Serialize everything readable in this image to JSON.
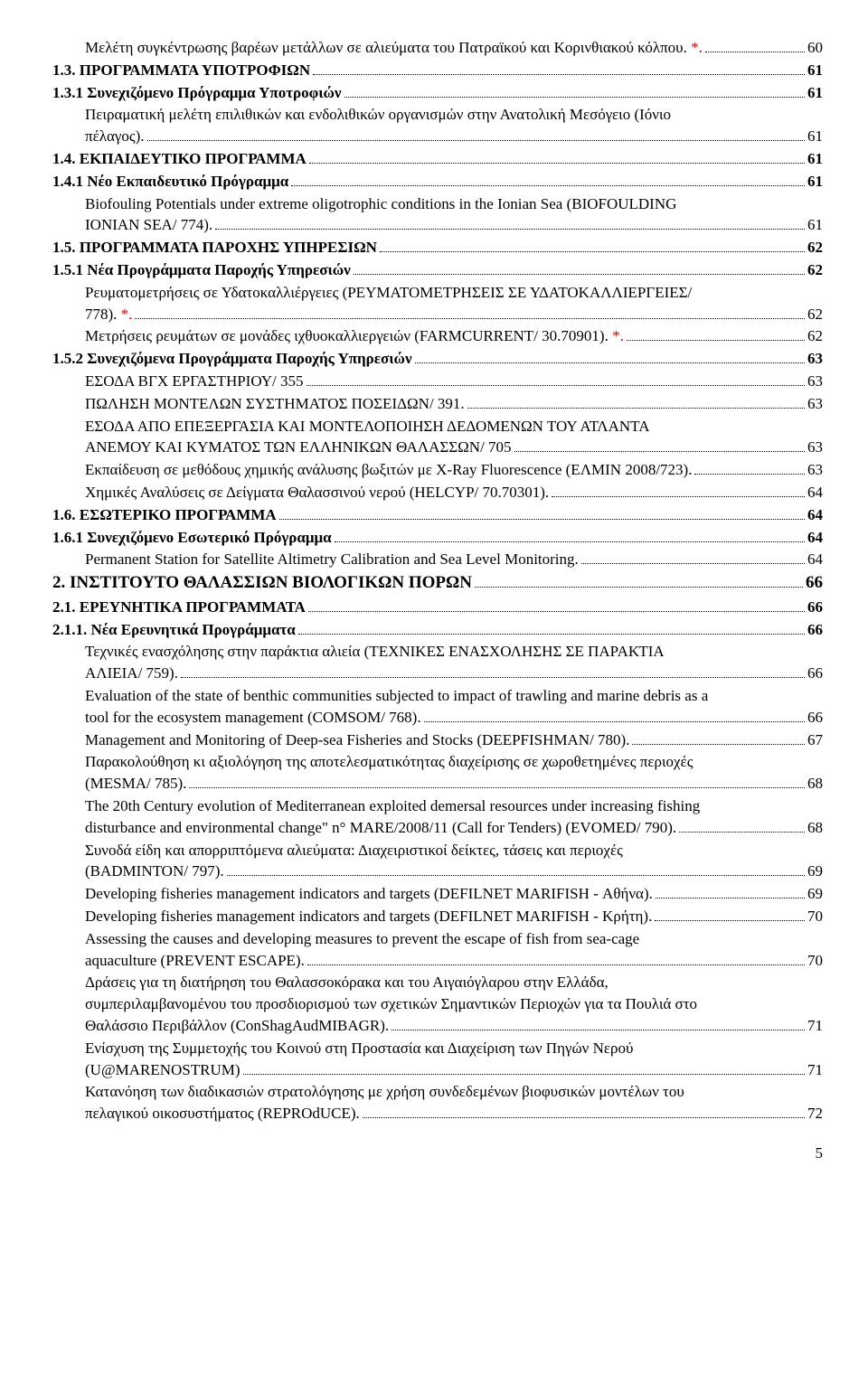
{
  "entries": [
    {
      "lvl": "l3",
      "bold": false,
      "lines": [
        "Μελέτη συγκέντρωσης βαρέων μετάλλων σε αλιεύματα του Πατραϊκού και Κορινθιακού κόλπου. "
      ],
      "trail": "*",
      "pg": "60"
    },
    {
      "lvl": "l1",
      "bold": true,
      "lines": [
        "1.3. ΠΡΟΓΡΑΜΜΑΤΑ ΥΠΟΤΡΟΦΙΩΝ"
      ],
      "pg": "61"
    },
    {
      "lvl": "l1",
      "bold": true,
      "lines": [
        "1.3.1 Συνεχιζόμενο Πρόγραμμα Υποτροφιών"
      ],
      "pg": "61"
    },
    {
      "lvl": "l3",
      "bold": false,
      "lines": [
        "Πειραματική μελέτη επιλιθικών και ενδολιθικών οργανισμών στην Ανατολική Μεσόγειο (Ιόνιο",
        "πέλαγος)."
      ],
      "pg": "61"
    },
    {
      "lvl": "l1",
      "bold": true,
      "lines": [
        "1.4. ΕΚΠΑΙΔΕΥΤΙΚΟ ΠΡΟΓΡΑΜΜΑ"
      ],
      "pg": "61"
    },
    {
      "lvl": "l1",
      "bold": true,
      "lines": [
        "1.4.1 Νέο Εκπαιδευτικό Πρόγραμμα"
      ],
      "pg": "61"
    },
    {
      "lvl": "l3",
      "bold": false,
      "lines": [
        "Biofouling Potentials under extreme oligotrophic conditions in the Ionian Sea (BIOFOULDING",
        "IONIAN SEA/ 774)."
      ],
      "pg": "61"
    },
    {
      "lvl": "l1",
      "bold": true,
      "lines": [
        "1.5. ΠΡΟΓΡΑΜΜΑΤΑ ΠΑΡΟΧΗΣ ΥΠΗΡΕΣΙΩΝ"
      ],
      "pg": "62"
    },
    {
      "lvl": "l1",
      "bold": true,
      "lines": [
        "1.5.1 Νέα Προγράμματα Παροχής Υπηρεσιών"
      ],
      "pg": "62"
    },
    {
      "lvl": "l3",
      "bold": false,
      "lines": [
        "Ρευματομετρήσεις σε Υδατοκαλλιέργειες (ΡΕΥΜΑΤΟΜΕΤΡΗΣΕΙΣ ΣΕ ΥΔΑΤΟΚΑΛΛΙΕΡΓΕΙΕΣ/",
        "778). "
      ],
      "trail": "*",
      "pg": "62"
    },
    {
      "lvl": "l3",
      "bold": false,
      "lines": [
        "Μετρήσεις ρευμάτων σε μονάδες ιχθυοκαλλιεργειών (FARMCURRENT/ 30.70901). "
      ],
      "trail": "*",
      "pg": "62"
    },
    {
      "lvl": "l1",
      "bold": true,
      "lines": [
        "1.5.2 Συνεχιζόμενα Προγράμματα Παροχής Υπηρεσιών"
      ],
      "pg": "63"
    },
    {
      "lvl": "l3",
      "bold": false,
      "lines": [
        "ΕΣΟΔΑ ΒΓΧ ΕΡΓΑΣΤΗΡΙΟΥ/ 355"
      ],
      "pg": "63"
    },
    {
      "lvl": "l3",
      "bold": false,
      "lines": [
        "ΠΩΛΗΣΗ ΜΟΝΤΕΛΩΝ ΣΥΣΤΗΜΑΤΟΣ ΠΟΣΕΙΔΩΝ/ 391."
      ],
      "pg": "63"
    },
    {
      "lvl": "l3",
      "bold": false,
      "lines": [
        "ΕΣΟΔΑ ΑΠΟ ΕΠΕΞΕΡΓΑΣΙΑ ΚΑΙ ΜΟΝΤΕΛΟΠΟΙΗΣΗ ΔΕΔΟΜΕΝΩΝ ΤΟΥ ΑΤΛΑΝΤΑ",
        "ΑΝΕΜΟΥ ΚΑΙ ΚΥΜΑΤΟΣ ΤΩΝ ΕΛΛΗΝΙΚΩΝ ΘΑΛΑΣΣΩΝ/ 705"
      ],
      "pg": "63"
    },
    {
      "lvl": "l3",
      "bold": false,
      "lines": [
        "Εκπαίδευση σε μεθόδους χημικής ανάλυσης βωξιτών με X-Ray Fluorescence (ΕΛΜΙΝ 2008/723)."
      ],
      "pg": "63"
    },
    {
      "lvl": "l3",
      "bold": false,
      "lines": [
        "Χημικές Αναλύσεις σε Δείγματα Θαλασσινού νερού (HELCYP/ 70.70301)."
      ],
      "pg": "64"
    },
    {
      "lvl": "l1",
      "bold": true,
      "lines": [
        "1.6. ΕΣΩΤΕΡΙΚΟ ΠΡΟΓΡΑΜΜΑ"
      ],
      "pg": "64"
    },
    {
      "lvl": "l1",
      "bold": true,
      "lines": [
        "1.6.1 Συνεχιζόμενο Εσωτερικό Πρόγραμμα"
      ],
      "pg": "64"
    },
    {
      "lvl": "l3",
      "bold": false,
      "lines": [
        "Permanent Station for Satellite Altimetry Calibration and Sea Level Monitoring."
      ],
      "pg": "64"
    },
    {
      "lvl": "l1",
      "bold": true,
      "lines": [
        "2. ΙΝΣΤΙΤΟΥΤΟ ΘΑΛΑΣΣΙΩΝ ΒΙΟΛΟΓΙΚΩΝ ΠΟΡΩΝ"
      ],
      "pg": "66",
      "big": true
    },
    {
      "lvl": "l1",
      "bold": true,
      "lines": [
        "2.1. ΕΡΕΥΝΗΤΙΚΑ ΠΡΟΓΡΑΜΜΑΤΑ"
      ],
      "pg": "66"
    },
    {
      "lvl": "l1",
      "bold": true,
      "lines": [
        "2.1.1. Νέα Ερευνητικά Προγράμματα"
      ],
      "pg": "66"
    },
    {
      "lvl": "l3",
      "bold": false,
      "lines": [
        "Τεχνικές ενασχόλησης στην παράκτια αλιεία (ΤΕΧΝΙΚΕΣ ΕΝΑΣΧΟΛΗΣΗΣ ΣΕ ΠΑΡΑΚΤΙΑ",
        "ΑΛΙΕΙΑ/ 759)."
      ],
      "pg": "66"
    },
    {
      "lvl": "l3",
      "bold": false,
      "lines": [
        "Evaluation of the state of benthic communities subjected to impact of trawling and marine debris as a",
        "tool for the ecosystem management (COMSOM/ 768)."
      ],
      "pg": "66"
    },
    {
      "lvl": "l3",
      "bold": false,
      "lines": [
        "Management and Monitoring of Deep-sea Fisheries and Stocks (DEEPFISHMAN/ 780)."
      ],
      "pg": "67"
    },
    {
      "lvl": "l3",
      "bold": false,
      "lines": [
        "Παρακολούθηση κι αξιολόγηση της αποτελεσματικότητας διαχείρισης σε χωροθετημένες περιοχές",
        "(MESMA/ 785)."
      ],
      "pg": "68"
    },
    {
      "lvl": "l3",
      "bold": false,
      "lines": [
        "The 20th Century evolution of Mediterranean exploited demersal resources under increasing fishing",
        "disturbance and environmental change\" n° MARE/2008/11 (Call for Tenders) (EVOMED/ 790)."
      ],
      "pg": "68"
    },
    {
      "lvl": "l3",
      "bold": false,
      "lines": [
        "Συνοδά είδη και απορριπτόμενα αλιεύματα: Διαχειριστικοί δείκτες, τάσεις και περιοχές",
        "(BADMINTON/ 797)."
      ],
      "pg": "69"
    },
    {
      "lvl": "l3",
      "bold": false,
      "lines": [
        "Developing fisheries management indicators and targets (DEFILNET MARIFISH - Αθήνα)."
      ],
      "pg": "69"
    },
    {
      "lvl": "l3",
      "bold": false,
      "lines": [
        "Developing fisheries management indicators and targets (DEFILNET MARIFISH - Κρήτη)."
      ],
      "pg": "70"
    },
    {
      "lvl": "l3",
      "bold": false,
      "lines": [
        "Assessing the causes and developing measures to prevent the escape of fish from sea-cage",
        "aquaculture (PREVENT ESCAPE)."
      ],
      "pg": "70"
    },
    {
      "lvl": "l3",
      "bold": false,
      "lines": [
        "Δράσεις για τη διατήρηση του Θαλασσοκόρακα και του Αιγαιόγλαρου στην Ελλάδα,",
        "συμπεριλαμβανομένου του προσδιορισμού των σχετικών Σημαντικών Περιοχών για τα Πουλιά στο",
        "Θαλάσσιο Περιβάλλον (ConShagAudMIBAGR)."
      ],
      "pg": "71"
    },
    {
      "lvl": "l3",
      "bold": false,
      "lines": [
        "Ενίσχυση της Συμμετοχής του Κοινού στη Προστασία και Διαχείριση των Πηγών Νερού",
        "(U@MARENOSTRUM)"
      ],
      "pg": "71"
    },
    {
      "lvl": "l3",
      "bold": false,
      "lines": [
        "Κατανόηση των διαδικασιών στρατολόγησης με χρήση συνδεδεμένων βιοφυσικών μοντέλων του",
        "πελαγικού οικοσυστήματος (REPROdUCE)."
      ],
      "pg": "72"
    }
  ],
  "pageNumber": "5"
}
